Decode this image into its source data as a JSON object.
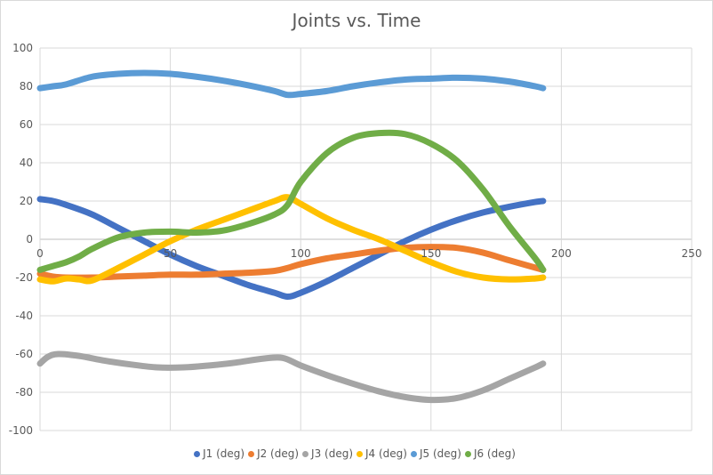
{
  "chart_data": {
    "type": "scatter",
    "title": "Joints vs. Time",
    "xlabel": "",
    "ylabel": "",
    "xlim": [
      0,
      250
    ],
    "ylim": [
      -100,
      100
    ],
    "xticks": [
      0,
      50,
      100,
      150,
      200,
      250
    ],
    "yticks": [
      100,
      80,
      60,
      40,
      20,
      0,
      -20,
      -40,
      -60,
      -80,
      -100
    ],
    "grid": true,
    "legend_position": "bottom",
    "series": [
      {
        "name": "J1 (deg)",
        "color": "#4472C4",
        "x": [
          0,
          5,
          10,
          20,
          30,
          40,
          50,
          60,
          70,
          80,
          90,
          95,
          100,
          110,
          120,
          130,
          140,
          150,
          160,
          170,
          180,
          190,
          193
        ],
        "y": [
          21,
          20,
          18,
          13,
          6,
          -1,
          -8,
          -14,
          -19,
          -24,
          -28,
          -30,
          -28,
          -22,
          -15,
          -8,
          -1,
          5,
          10,
          14,
          17,
          19.5,
          20
        ]
      },
      {
        "name": "J2 (deg)",
        "color": "#ED7D31",
        "x": [
          0,
          5,
          10,
          20,
          30,
          40,
          50,
          60,
          70,
          80,
          90,
          95,
          100,
          110,
          120,
          130,
          140,
          150,
          160,
          170,
          180,
          193
        ],
        "y": [
          -18,
          -19.5,
          -20,
          -20,
          -19.5,
          -19,
          -18.5,
          -18.5,
          -18,
          -17.5,
          -16.5,
          -15,
          -13,
          -10,
          -8,
          -6,
          -4.5,
          -4,
          -4.5,
          -7,
          -11,
          -16
        ]
      },
      {
        "name": "J3 (deg)",
        "color": "#A5A5A5",
        "x": [
          0,
          3,
          7,
          15,
          25,
          35,
          45,
          55,
          65,
          75,
          85,
          93,
          100,
          110,
          120,
          130,
          140,
          150,
          160,
          170,
          180,
          190,
          193
        ],
        "y": [
          -65,
          -61.5,
          -60,
          -61,
          -63.5,
          -65.5,
          -67,
          -67,
          -66,
          -64.5,
          -62.5,
          -62,
          -66,
          -71,
          -75.5,
          -79.5,
          -82.5,
          -84,
          -83,
          -79,
          -73,
          -67,
          -65
        ]
      },
      {
        "name": "J4 (deg)",
        "color": "#FFC000",
        "x": [
          0,
          5,
          10,
          15,
          20,
          30,
          40,
          50,
          60,
          70,
          80,
          90,
          95,
          100,
          110,
          120,
          130,
          140,
          150,
          160,
          170,
          180,
          190,
          193
        ],
        "y": [
          -21,
          -22,
          -20.5,
          -21,
          -21.5,
          -15,
          -8,
          -1,
          5,
          10,
          15,
          20,
          22,
          18.5,
          11,
          5,
          0,
          -6,
          -12,
          -17,
          -20,
          -21,
          -20.5,
          -20
        ]
      },
      {
        "name": "J5 (deg)",
        "color": "#5B9BD5",
        "x": [
          0,
          5,
          10,
          20,
          30,
          40,
          50,
          60,
          70,
          80,
          90,
          95,
          100,
          110,
          120,
          130,
          140,
          150,
          160,
          170,
          180,
          190,
          193
        ],
        "y": [
          79,
          80,
          81,
          85,
          86.5,
          87,
          86.5,
          85,
          83,
          80.5,
          77.5,
          75.5,
          76,
          77.5,
          80,
          82,
          83.5,
          84,
          84.5,
          84,
          82.5,
          80,
          79
        ]
      },
      {
        "name": "J6 (deg)",
        "color": "#70AD47",
        "x": [
          0,
          5,
          10,
          15,
          20,
          30,
          40,
          50,
          60,
          70,
          80,
          90,
          95,
          100,
          110,
          120,
          130,
          140,
          150,
          160,
          170,
          180,
          190,
          193
        ],
        "y": [
          -16,
          -14,
          -12,
          -9,
          -5,
          1,
          3.5,
          4,
          3.5,
          4.5,
          8,
          13,
          18,
          30,
          45,
          53,
          55.5,
          55,
          50,
          41,
          26,
          7,
          -10,
          -16
        ]
      }
    ]
  }
}
